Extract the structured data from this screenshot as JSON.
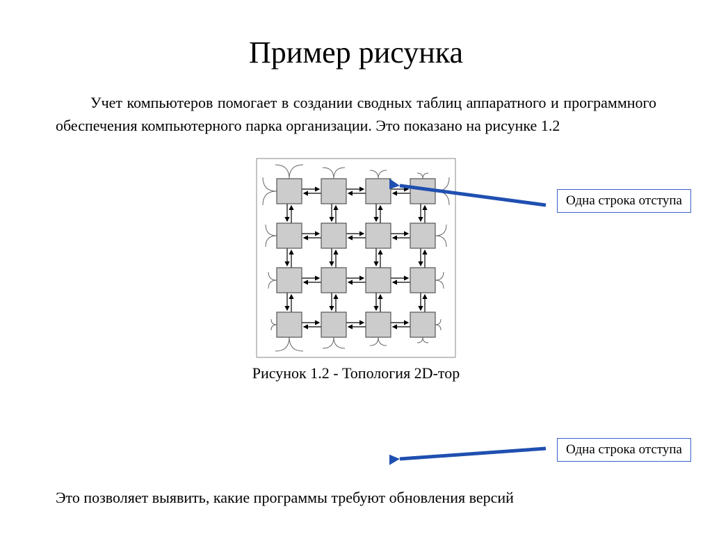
{
  "title": "Пример рисунка",
  "paragraph1": "Учет компьютеров помогает в создании сводных таблиц аппаратного и программного обеспечения компьютерного парка организации. Это показано на рисунке 1.2",
  "caption": "Рисунок 1.2  - Топология  2D-тор",
  "paragraph2": "Это позволяет выявить, какие программы требуют обновления версий",
  "callout1": "Одна строка отступа",
  "callout2": "Одна строка отступа",
  "diagram": {
    "type": "network",
    "rows": 4,
    "cols": 4,
    "node_size": 36,
    "node_gap": 28,
    "node_fill": "#cccccc",
    "node_stroke": "#555555",
    "wire_stroke": "#666666",
    "arrow_stroke": "#000000",
    "frame_stroke": "#888888",
    "background": "#ffffff"
  },
  "style": {
    "callout_border": "#3a5fcd",
    "callout_arrow": "#1f4fb0",
    "title_fontsize": 44,
    "body_fontsize": 22
  }
}
